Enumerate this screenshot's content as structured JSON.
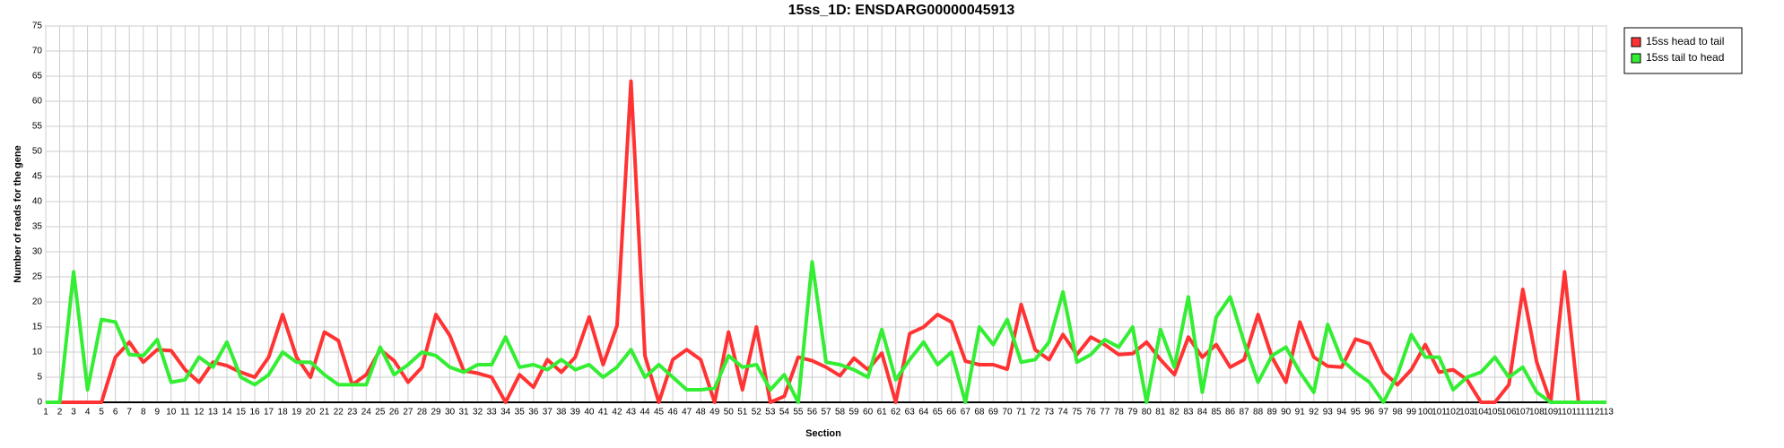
{
  "chart_data": {
    "type": "line",
    "title": "15ss_1D: ENSDARG00000045913",
    "x_label": "Section",
    "y_label": "Number of reads for the gene",
    "categories": [
      "1",
      "2",
      "3",
      "4",
      "5",
      "6",
      "7",
      "8",
      "9",
      "10",
      "11",
      "12",
      "13",
      "14",
      "15",
      "16",
      "17",
      "18",
      "19",
      "20",
      "21",
      "22",
      "23",
      "24",
      "25",
      "26",
      "27",
      "28",
      "29",
      "30",
      "31",
      "32",
      "33",
      "34",
      "35",
      "36",
      "37",
      "38",
      "39",
      "40",
      "41",
      "42",
      "43",
      "44",
      "45",
      "46",
      "47",
      "48",
      "49",
      "50",
      "51",
      "52",
      "53",
      "54",
      "55",
      "56",
      "57",
      "58",
      "59",
      "60",
      "61",
      "62",
      "63",
      "64",
      "65",
      "66",
      "67",
      "68",
      "69",
      "70",
      "71",
      "72",
      "73",
      "74",
      "75",
      "76",
      "77",
      "78",
      "79",
      "80",
      "81",
      "82",
      "83",
      "84",
      "85",
      "86",
      "87",
      "88",
      "89",
      "90",
      "91",
      "92",
      "93",
      "94",
      "95",
      "96",
      "97",
      "98",
      "99",
      "100",
      "101",
      "102",
      "103",
      "104",
      "105",
      "106",
      "107",
      "108",
      "109",
      "110",
      "111",
      "112",
      "113"
    ],
    "series": [
      {
        "name": "15ss head to tail",
        "color": "#ff3333",
        "values": [
          0,
          0,
          0,
          0,
          0,
          9,
          12,
          8,
          10.5,
          10.3,
          6.5,
          4,
          8,
          7.3,
          6,
          5,
          9,
          17.5,
          9,
          5,
          14,
          12.3,
          3.5,
          5.5,
          10.5,
          8.3,
          4,
          7,
          17.5,
          13.3,
          6.3,
          5.8,
          5,
          0,
          5.5,
          3,
          8.5,
          6,
          9,
          17,
          7.5,
          15.3,
          64,
          9.3,
          0,
          8.5,
          10.5,
          8.5,
          0,
          14,
          2.5,
          15,
          0,
          1.2,
          9,
          8.3,
          7,
          5.3,
          8.8,
          6.5,
          9.8,
          0,
          13.7,
          15,
          17.5,
          16,
          8.2,
          7.5,
          7.5,
          6.6,
          19.5,
          10.5,
          8.5,
          13.5,
          9.5,
          13,
          11.5,
          9.5,
          9.7,
          12,
          8.5,
          5.5,
          13,
          9,
          11.5,
          7,
          8.5,
          17.5,
          9,
          4,
          16,
          9,
          7.2,
          7,
          12.6,
          11.7,
          6,
          3.5,
          6.5,
          11.5,
          6,
          6.5,
          4.5,
          0,
          0,
          3.5,
          22.5,
          8,
          0,
          26,
          0,
          0,
          0
        ]
      },
      {
        "name": "15ss tail to head",
        "color": "#33ee33",
        "values": [
          0,
          0,
          26,
          2.5,
          16.5,
          16,
          9.5,
          9.3,
          12.5,
          4,
          4.5,
          9,
          7,
          12,
          5,
          3.5,
          5.5,
          10,
          8,
          8,
          5.5,
          3.5,
          3.5,
          3.5,
          11,
          5.5,
          7.5,
          10,
          9.3,
          7,
          6,
          7.5,
          7.5,
          13,
          7,
          7.5,
          6.5,
          8.5,
          6.5,
          7.5,
          5,
          7,
          10.5,
          5,
          7.5,
          5,
          2.5,
          2.5,
          2.8,
          9.3,
          7,
          7.5,
          2.5,
          5.5,
          0,
          28,
          8,
          7.5,
          6.5,
          5,
          14.5,
          4.5,
          8.5,
          12,
          7.5,
          10,
          0,
          15,
          11.5,
          16.5,
          8,
          8.5,
          12,
          22,
          8,
          9.5,
          12.5,
          11,
          15,
          0,
          14.5,
          7,
          21,
          2,
          17,
          21,
          12,
          4,
          9.3,
          11,
          6,
          2,
          15.5,
          8.5,
          6,
          4,
          0,
          5.5,
          13.5,
          9,
          9,
          2.5,
          5,
          6,
          9,
          5,
          7,
          2,
          0,
          0,
          0,
          0,
          0
        ]
      }
    ],
    "ylim": [
      0,
      75
    ],
    "yticks": [
      0,
      5,
      10,
      15,
      20,
      25,
      30,
      35,
      40,
      45,
      50,
      55,
      60,
      65,
      70,
      75
    ],
    "grid": true,
    "legend": "outside-right"
  }
}
